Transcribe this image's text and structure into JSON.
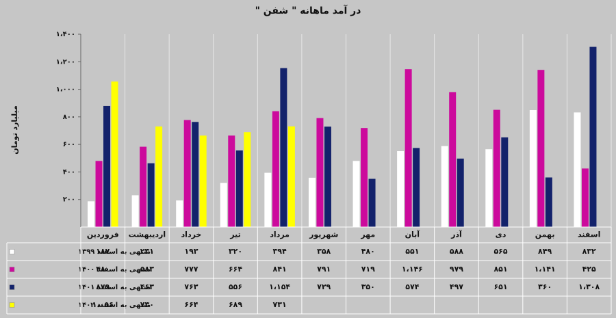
{
  "chart_data": {
    "type": "bar",
    "title": "در آمد ماهانه \" شفن \"",
    "y_label": "میلیارد تومان",
    "categories": [
      "فروردین",
      "اردیبهشت",
      "خرداد",
      "تیر",
      "مرداد",
      "شهریور",
      "مهر",
      "آبان",
      "آذر",
      "دی",
      "بهمن",
      "اسفند"
    ],
    "ylim": [
      0,
      1400
    ],
    "yticks": [
      {
        "value": 200,
        "label": "۲۰۰"
      },
      {
        "value": 400,
        "label": "۴۰۰"
      },
      {
        "value": 600,
        "label": "۶۰۰"
      },
      {
        "value": 800,
        "label": "۸۰۰"
      },
      {
        "value": 1000,
        "label": "۱،۰۰۰"
      },
      {
        "value": 1200,
        "label": "۱،۲۰۰"
      },
      {
        "value": 1400,
        "label": "۱،۴۰۰"
      }
    ],
    "grid": false,
    "series": [
      {
        "name": "منتهی به اسفند ۱۳۹۹",
        "color": "#ffffff",
        "values": [
          187,
          231,
          193,
          320,
          394,
          358,
          480,
          551,
          588,
          565,
          849,
          832
        ],
        "value_labels": [
          "۱۸۷",
          "۲۳۱",
          "۱۹۳",
          "۳۲۰",
          "۳۹۴",
          "۳۵۸",
          "۴۸۰",
          "۵۵۱",
          "۵۸۸",
          "۵۶۵",
          "۸۴۹",
          "۸۳۲"
        ]
      },
      {
        "name": "منتهی به اسفند ۱۴۰۰",
        "color": "#cc0a9c",
        "values": [
          480,
          583,
          777,
          664,
          841,
          791,
          719,
          1146,
          979,
          851,
          1141,
          425
        ],
        "value_labels": [
          "۴۸۰",
          "۵۸۳",
          "۷۷۷",
          "۶۶۴",
          "۸۴۱",
          "۷۹۱",
          "۷۱۹",
          "۱،۱۴۶",
          "۹۷۹",
          "۸۵۱",
          "۱،۱۴۱",
          "۴۲۵"
        ]
      },
      {
        "name": "منتهی به اسفند ۱۴۰۱",
        "color": "#13226b",
        "values": [
          879,
          463,
          763,
          556,
          1154,
          729,
          350,
          574,
          497,
          651,
          360,
          1308
        ],
        "value_labels": [
          "۸۷۹",
          "۴۶۳",
          "۷۶۳",
          "۵۵۶",
          "۱،۱۵۴",
          "۷۲۹",
          "۳۵۰",
          "۵۷۴",
          "۴۹۷",
          "۶۵۱",
          "۳۶۰",
          "۱،۳۰۸"
        ]
      },
      {
        "name": "منتهی به اسفند ۱۴۰۲",
        "color": "#ffff00",
        "values": [
          1056,
          730,
          664,
          689,
          731,
          null,
          null,
          null,
          null,
          null,
          null,
          null
        ],
        "value_labels": [
          "۱،۰۵۶",
          "۷۳۰",
          "۶۶۴",
          "۶۸۹",
          "۷۳۱",
          null,
          null,
          null,
          null,
          null,
          null,
          null
        ]
      }
    ]
  }
}
